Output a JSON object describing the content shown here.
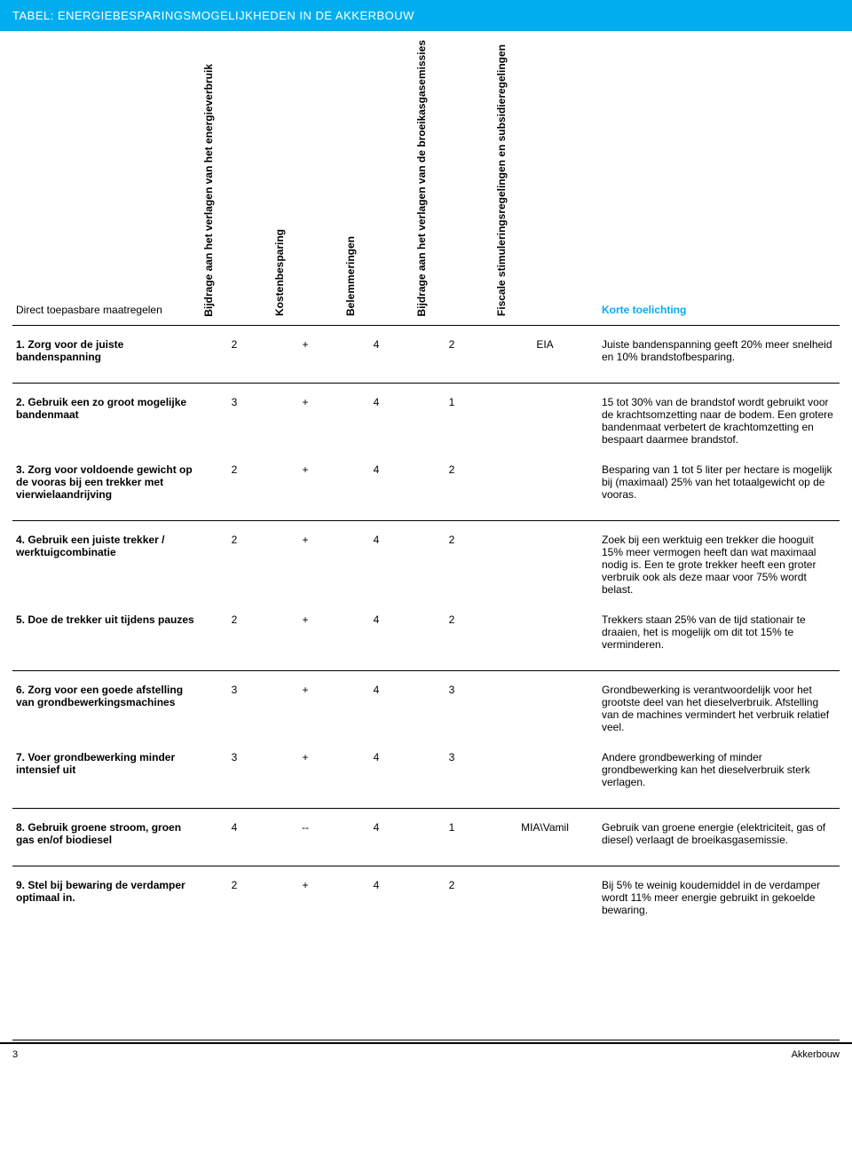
{
  "colors": {
    "banner_bg": "#00aeef",
    "banner_text": "#ffffff",
    "highlight": "#00aeef",
    "text": "#000000",
    "rule": "#000000"
  },
  "banner_title": "TABEL: ENERGIEBESPARINGSMOGELIJKHEDEN IN DE AKKERBOUW",
  "columns": {
    "measure": "Direct toepasbare maatregelen",
    "c1": "Bijdrage aan het verlagen van het energieverbruik",
    "c2": "Kostenbesparing",
    "c3": "Belemmeringen",
    "c4": "Bijdrage aan het verlagen van de broeikasgasemissies",
    "c5": "Fiscale stimuleringsregelingen en subsidieregelingen",
    "c6": "Korte toelichting"
  },
  "rows": [
    {
      "group_start": true,
      "group_last": true,
      "measure": "1. Zorg voor de juiste bandenspanning",
      "v1": "2",
      "v2": "+",
      "v3": "4",
      "v4": "2",
      "v5": "EIA",
      "note": "Juiste bandenspanning geeft 20% meer snelheid en 10% brandstofbesparing."
    },
    {
      "group_start": true,
      "measure": "2. Gebruik een zo groot mogelijke bandenmaat",
      "v1": "3",
      "v2": "+",
      "v3": "4",
      "v4": "1",
      "v5": "",
      "note": "15 tot 30% van de brandstof wordt gebruikt voor de krachtsomzetting naar de bodem. Een grotere bandenmaat verbetert de krachtomzetting en bespaart daarmee brandstof."
    },
    {
      "group_last": true,
      "measure": "3. Zorg voor voldoende gewicht op de vooras bij een trekker met vierwielaandrijving",
      "v1": "2",
      "v2": "+",
      "v3": "4",
      "v4": "2",
      "v5": "",
      "note": "Besparing van 1 tot 5 liter per hectare is mogelijk bij (maximaal) 25% van het totaalgewicht op de vooras."
    },
    {
      "group_start": true,
      "measure": "4. Gebruik een juiste trekker / werktuigcombinatie",
      "v1": "2",
      "v2": "+",
      "v3": "4",
      "v4": "2",
      "v5": "",
      "note": "Zoek bij een werktuig een trekker die hooguit 15% meer vermogen heeft dan wat maximaal nodig is. Een te grote trekker heeft een groter verbruik ook als deze maar voor 75% wordt belast."
    },
    {
      "group_last": true,
      "measure": "5. Doe de trekker uit tijdens pauzes",
      "v1": "2",
      "v2": "+",
      "v3": "4",
      "v4": "2",
      "v5": "",
      "note": "Trekkers staan 25% van de tijd stationair te draaien, het is mogelijk om dit tot 15% te verminderen."
    },
    {
      "group_start": true,
      "measure": "6. Zorg voor een goede afstelling van grondbewerkingsmachines",
      "v1": "3",
      "v2": "+",
      "v3": "4",
      "v4": "3",
      "v5": "",
      "note": "Grondbewerking is verantwoordelijk voor het grootste deel van het dieselverbruik. Afstelling van de machines vermindert het verbruik relatief veel."
    },
    {
      "group_last": true,
      "measure": "7. Voer grondbewerking minder intensief uit",
      "v1": "3",
      "v2": "+",
      "v3": "4",
      "v4": "3",
      "v5": "",
      "note": "Andere grondbewerking of minder grondbewerking kan het dieselverbruik sterk verlagen."
    },
    {
      "group_start": true,
      "group_last": true,
      "measure": "8. Gebruik groene stroom, groen gas en/of biodiesel",
      "v1": "4",
      "v2": "--",
      "v3": "4",
      "v4": "1",
      "v5": "MIA\\Vamil",
      "note": "Gebruik van groene energie (elektriciteit, gas of diesel) verlaagt de broeikasgasemissie."
    },
    {
      "group_start": true,
      "group_last": true,
      "measure": "9. Stel bij bewaring de verdamper optimaal in.",
      "v1": "2",
      "v2": "+",
      "v3": "4",
      "v4": "2",
      "v5": "",
      "note": "Bij 5% te weinig koudemiddel in de verdamper wordt 11% meer energie gebruikt in gekoelde bewaring."
    }
  ],
  "footer": {
    "page": "3",
    "section": "Akkerbouw"
  }
}
